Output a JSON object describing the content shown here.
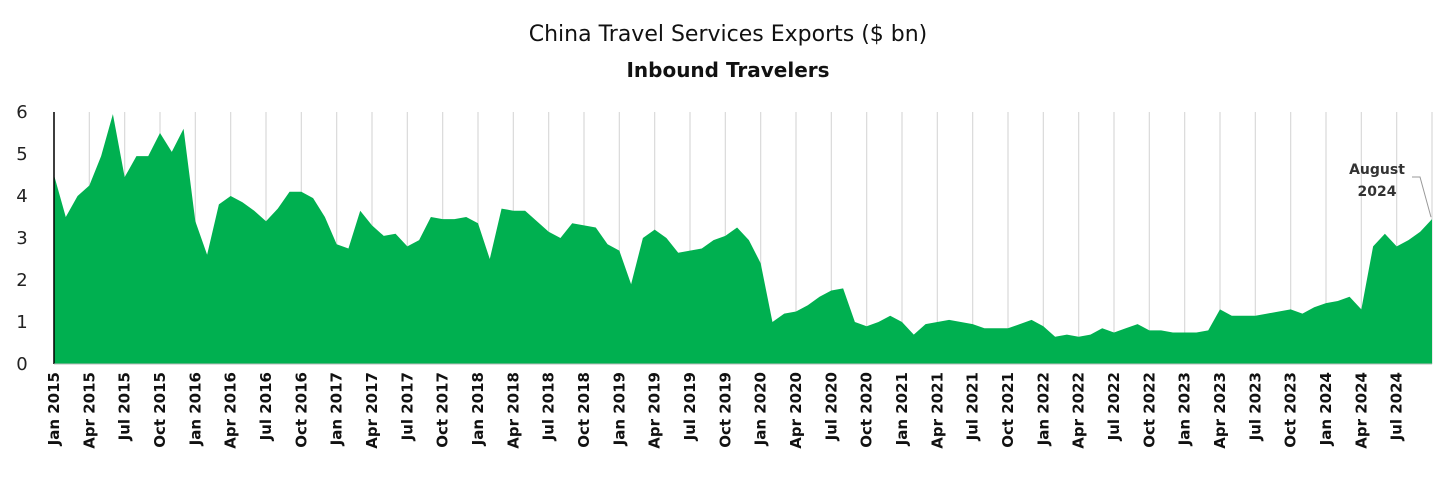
{
  "chart_data": {
    "type": "area",
    "title": "China Travel Services Exports ($ bn)",
    "subtitle": "Inbound Travelers",
    "xlabel": "",
    "ylabel": "",
    "ylim": [
      0,
      6
    ],
    "yticks": [
      0,
      1,
      2,
      3,
      4,
      5,
      6
    ],
    "grid": "vertical",
    "color": "#00B050",
    "x_tick_labels": [
      "Jan 2015",
      "Apr 2015",
      "Jul 2015",
      "Oct 2015",
      "Jan 2016",
      "Apr 2016",
      "Jul 2016",
      "Oct 2016",
      "Jan 2017",
      "Apr 2017",
      "Jul 2017",
      "Oct 2017",
      "Jan 2018",
      "Apr 2018",
      "Jul 2018",
      "Oct 2018",
      "Jan 2019",
      "Apr 2019",
      "Jul 2019",
      "Oct 2019",
      "Jan 2020",
      "Apr 2020",
      "Jul 2020",
      "Oct 2020",
      "Jan 2021",
      "Apr 2021",
      "Jul 2021",
      "Oct 2021",
      "Jan 2022",
      "Apr 2022",
      "Jul 2022",
      "Oct 2022",
      "Jan 2023",
      "Apr 2023",
      "Jul 2023",
      "Oct 2023",
      "Jan 2024",
      "Apr 2024",
      "Jul 2024"
    ],
    "start": "Jan 2015",
    "end": "Aug 2024",
    "values": [
      4.5,
      3.5,
      4.0,
      4.25,
      4.95,
      5.95,
      4.45,
      4.95,
      4.95,
      5.5,
      5.05,
      5.6,
      3.4,
      2.6,
      3.8,
      4.0,
      3.85,
      3.65,
      3.4,
      3.7,
      4.1,
      4.1,
      3.95,
      3.5,
      2.85,
      2.75,
      3.65,
      3.3,
      3.05,
      3.1,
      2.8,
      2.95,
      3.5,
      3.45,
      3.45,
      3.5,
      3.35,
      2.5,
      3.7,
      3.65,
      3.65,
      3.4,
      3.15,
      3.0,
      3.35,
      3.3,
      3.25,
      2.85,
      2.7,
      1.9,
      3.0,
      3.2,
      3.0,
      2.65,
      2.7,
      2.75,
      2.95,
      3.05,
      3.25,
      2.95,
      2.4,
      1.0,
      1.2,
      1.25,
      1.4,
      1.6,
      1.75,
      1.8,
      1.0,
      0.9,
      1.0,
      1.15,
      1.0,
      0.7,
      0.95,
      1.0,
      1.05,
      1.0,
      0.95,
      0.85,
      0.85,
      0.85,
      0.95,
      1.05,
      0.9,
      0.65,
      0.7,
      0.65,
      0.7,
      0.85,
      0.75,
      0.85,
      0.95,
      0.8,
      0.8,
      0.75,
      0.75,
      0.75,
      0.8,
      1.3,
      1.15,
      1.15,
      1.15,
      1.2,
      1.25,
      1.3,
      1.2,
      1.35,
      1.45,
      1.5,
      1.6,
      1.3,
      2.8,
      3.1,
      2.8,
      2.95,
      3.15,
      3.45
    ],
    "annotation": {
      "line1": "August",
      "line2": "2024"
    }
  }
}
